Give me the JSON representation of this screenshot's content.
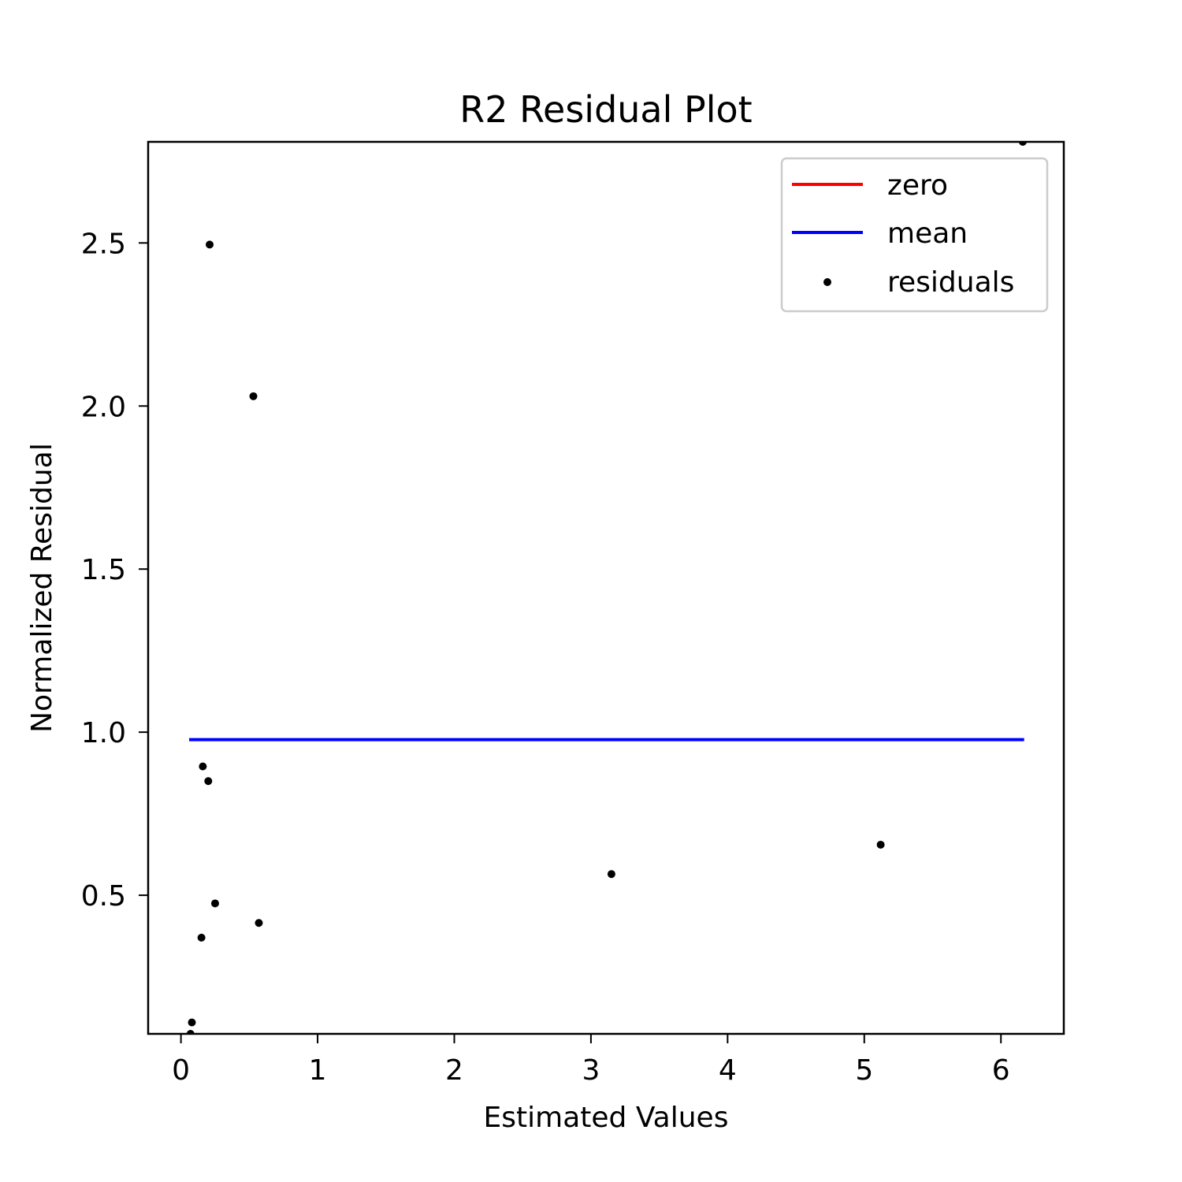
{
  "chart_data": {
    "type": "scatter",
    "title": "R2 Residual Plot",
    "xlabel": "Estimated Values",
    "ylabel": "Normalized Residual",
    "xlim": [
      -0.24,
      6.46
    ],
    "ylim": [
      0.075,
      2.81
    ],
    "xticks": [
      0,
      1,
      2,
      3,
      4,
      5,
      6
    ],
    "xtick_labels": [
      "0",
      "1",
      "2",
      "3",
      "4",
      "5",
      "6"
    ],
    "yticks": [
      0.5,
      1.0,
      1.5,
      2.0,
      2.5
    ],
    "ytick_labels": [
      "0.5",
      "1.0",
      "1.5",
      "2.0",
      "2.5"
    ],
    "grid": false,
    "legend_position": "top-right",
    "series": [
      {
        "name": "zero",
        "kind": "line",
        "color": "#ff0000",
        "x": [
          0.06,
          6.17
        ],
        "y": [
          0.0,
          0.0
        ]
      },
      {
        "name": "mean",
        "kind": "line",
        "color": "#0000ff",
        "x": [
          0.06,
          6.17
        ],
        "y": [
          0.977,
          0.977
        ]
      },
      {
        "name": "residuals",
        "kind": "scatter",
        "color": "#000000",
        "points": [
          {
            "x": 0.07,
            "y": 0.075
          },
          {
            "x": 0.08,
            "y": 0.11
          },
          {
            "x": 0.15,
            "y": 0.37
          },
          {
            "x": 0.16,
            "y": 0.895
          },
          {
            "x": 0.2,
            "y": 0.85
          },
          {
            "x": 0.21,
            "y": 2.495
          },
          {
            "x": 0.25,
            "y": 0.475
          },
          {
            "x": 0.53,
            "y": 2.03
          },
          {
            "x": 0.57,
            "y": 0.415
          },
          {
            "x": 3.15,
            "y": 0.565
          },
          {
            "x": 5.12,
            "y": 0.655
          },
          {
            "x": 6.16,
            "y": 2.81
          }
        ]
      }
    ]
  }
}
